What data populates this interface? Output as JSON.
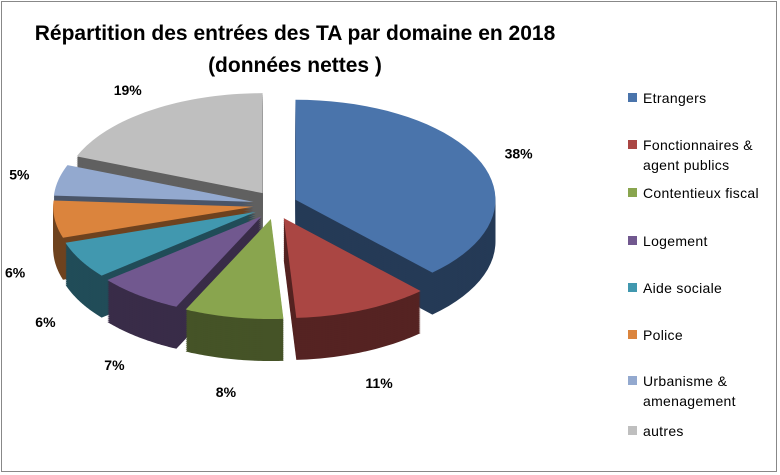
{
  "chart_data": {
    "type": "pie",
    "title": "Répartition des entrées des TA par domaine en 2018 (données nettes )",
    "title_lines": [
      "Répartition des entrées des TA par domaine en 2018",
      "(données nettes )"
    ],
    "style": "3d-exploded",
    "legend_position": "right",
    "categories": [
      "Etrangers",
      "Fonctionnaires & agent publics",
      "Contentieux fiscal",
      "Logement",
      "Aide sociale",
      "Police",
      "Urbanisme & amenagement",
      "autres"
    ],
    "values": [
      38,
      11,
      8,
      7,
      6,
      6,
      5,
      19
    ],
    "labels": [
      "38%",
      "11%",
      "8%",
      "7%",
      "6%",
      "6%",
      "5%",
      "19%"
    ],
    "colors": [
      "#4A74AB",
      "#AA4643",
      "#89A54E",
      "#71588F",
      "#4198AF",
      "#DB843D",
      "#93A9CF",
      "#BFBFBF"
    ]
  }
}
